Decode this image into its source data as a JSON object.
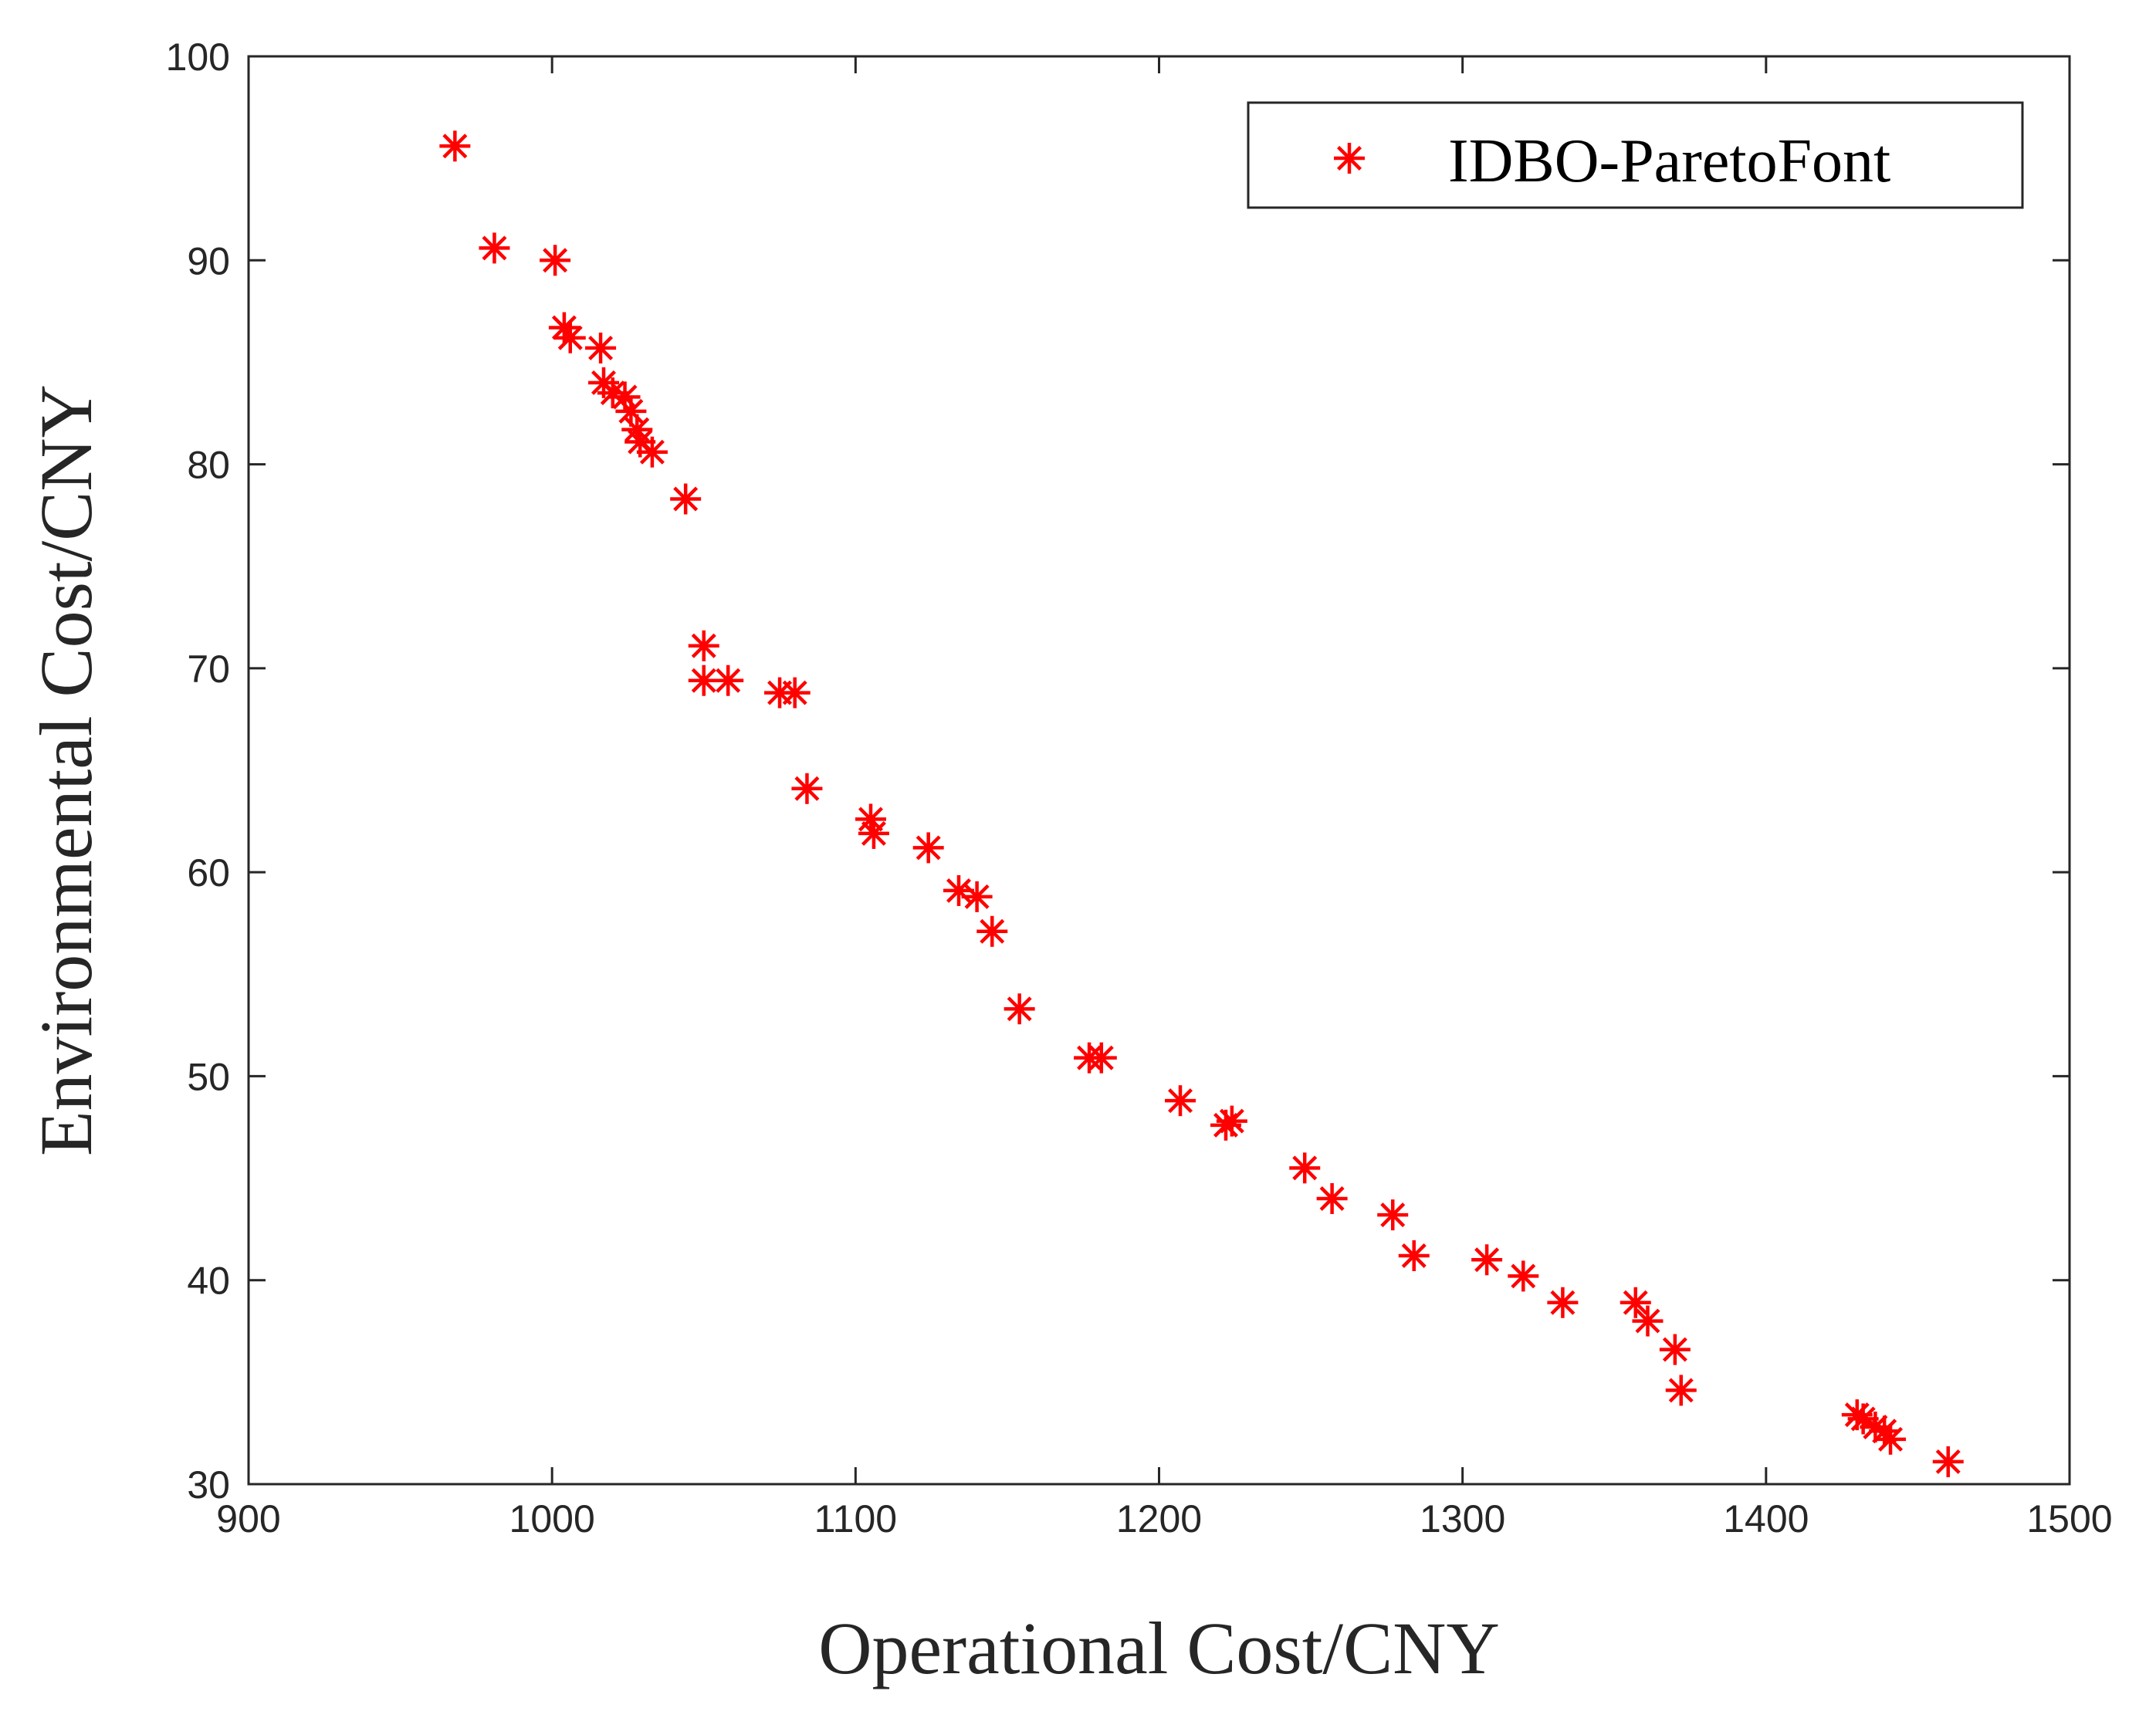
{
  "chart_data": {
    "type": "scatter",
    "title": "",
    "xlabel": "Operational Cost/CNY",
    "ylabel": "Environmental Cost/CNY",
    "xlim": [
      900,
      1500
    ],
    "ylim": [
      30,
      100
    ],
    "xticks": [
      900,
      1000,
      1100,
      1200,
      1300,
      1400,
      1500
    ],
    "yticks": [
      30,
      40,
      50,
      60,
      70,
      80,
      90,
      100
    ],
    "grid": false,
    "legend_position": "top-right",
    "series": [
      {
        "name": "IDBO-ParetoFont",
        "marker": "asterisk",
        "color": "#ff0000",
        "points": [
          [
            968,
            95.6
          ],
          [
            981,
            90.6
          ],
          [
            1001,
            90.0
          ],
          [
            1004,
            86.7
          ],
          [
            1006,
            86.2
          ],
          [
            1016,
            85.7
          ],
          [
            1017,
            84.0
          ],
          [
            1020,
            83.5
          ],
          [
            1024,
            83.3
          ],
          [
            1026,
            82.6
          ],
          [
            1028,
            81.7
          ],
          [
            1029,
            81.1
          ],
          [
            1033,
            80.6
          ],
          [
            1044,
            78.3
          ],
          [
            1050,
            71.1
          ],
          [
            1050,
            69.4
          ],
          [
            1058,
            69.4
          ],
          [
            1075,
            68.8
          ],
          [
            1080,
            68.8
          ],
          [
            1084,
            64.1
          ],
          [
            1105,
            62.6
          ],
          [
            1106,
            61.9
          ],
          [
            1124,
            61.2
          ],
          [
            1134,
            59.1
          ],
          [
            1140,
            58.8
          ],
          [
            1145,
            57.1
          ],
          [
            1154,
            53.3
          ],
          [
            1177,
            50.9
          ],
          [
            1181,
            50.9
          ],
          [
            1207,
            48.8
          ],
          [
            1222,
            47.6
          ],
          [
            1224,
            47.8
          ],
          [
            1248,
            45.5
          ],
          [
            1257,
            44.0
          ],
          [
            1277,
            43.2
          ],
          [
            1284,
            41.2
          ],
          [
            1308,
            41.0
          ],
          [
            1320,
            40.2
          ],
          [
            1333,
            38.9
          ],
          [
            1357,
            38.9
          ],
          [
            1361,
            38.0
          ],
          [
            1370,
            36.6
          ],
          [
            1372,
            34.6
          ],
          [
            1430,
            33.4
          ],
          [
            1432,
            33.2
          ],
          [
            1436,
            32.8
          ],
          [
            1439,
            32.6
          ],
          [
            1441,
            32.2
          ],
          [
            1460,
            31.1
          ]
        ]
      }
    ]
  },
  "colors": {
    "marker": "#ff0000",
    "axis": "#262626",
    "background": "#ffffff"
  }
}
